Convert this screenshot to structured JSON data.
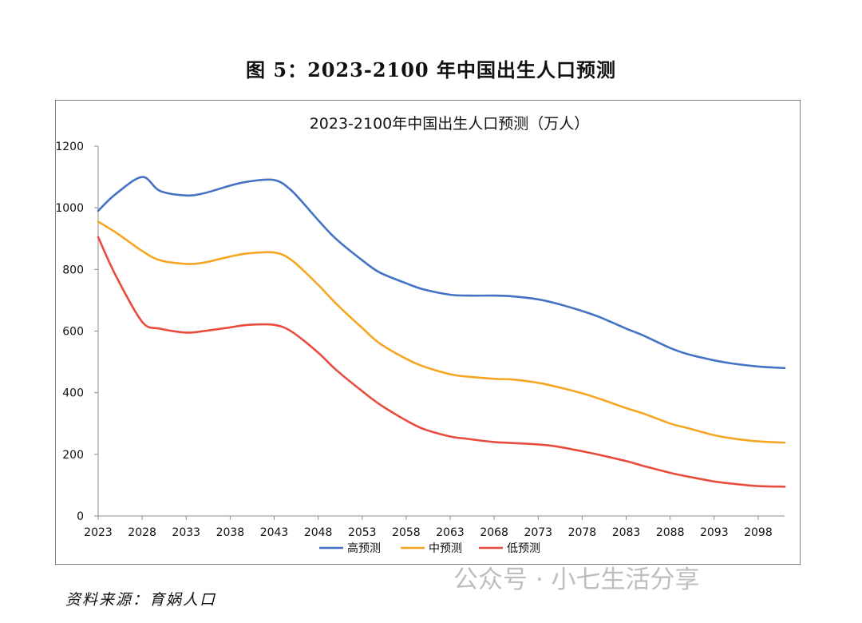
{
  "caption": "图 5：2023-2100 年中国出生人口预测",
  "source": "资料来源：育娲人口",
  "watermark": "公众号 · 小七生活分享",
  "chart_data": {
    "type": "line",
    "title": "2023-2100年中国出生人口预测（万人）",
    "xlabel": "",
    "ylabel": "",
    "xlim": [
      2023,
      2101
    ],
    "ylim": [
      0,
      1200
    ],
    "y_ticks": [
      0,
      200,
      400,
      600,
      800,
      1000,
      1200
    ],
    "x_ticks": [
      2023,
      2028,
      2033,
      2038,
      2043,
      2048,
      2053,
      2058,
      2063,
      2068,
      2073,
      2078,
      2083,
      2088,
      2093,
      2098
    ],
    "grid": false,
    "legend_position": "bottom",
    "x": [
      2023,
      2025,
      2028,
      2030,
      2033,
      2035,
      2038,
      2040,
      2043,
      2045,
      2048,
      2050,
      2053,
      2055,
      2058,
      2060,
      2063,
      2065,
      2068,
      2070,
      2073,
      2075,
      2078,
      2080,
      2083,
      2085,
      2088,
      2090,
      2093,
      2095,
      2098,
      2101
    ],
    "series": [
      {
        "name": "高预测",
        "color": "#4472C4",
        "values": [
          990,
          1045,
          1100,
          1055,
          1040,
          1047,
          1072,
          1085,
          1090,
          1055,
          960,
          900,
          830,
          790,
          755,
          735,
          718,
          715,
          715,
          713,
          703,
          690,
          665,
          645,
          608,
          585,
          545,
          525,
          505,
          495,
          485,
          480
        ]
      },
      {
        "name": "中预测",
        "color": "#F5A623",
        "values": [
          955,
          920,
          860,
          830,
          818,
          822,
          842,
          852,
          855,
          830,
          750,
          690,
          610,
          560,
          510,
          485,
          460,
          452,
          445,
          443,
          432,
          420,
          398,
          380,
          350,
          332,
          300,
          285,
          262,
          252,
          242,
          238
        ]
      },
      {
        "name": "低预测",
        "color": "#E84C3D",
        "values": [
          905,
          780,
          630,
          608,
          595,
          600,
          612,
          620,
          620,
          598,
          530,
          475,
          405,
          362,
          310,
          282,
          258,
          250,
          240,
          237,
          232,
          226,
          210,
          198,
          178,
          162,
          140,
          128,
          112,
          105,
          97,
          95
        ]
      }
    ]
  }
}
